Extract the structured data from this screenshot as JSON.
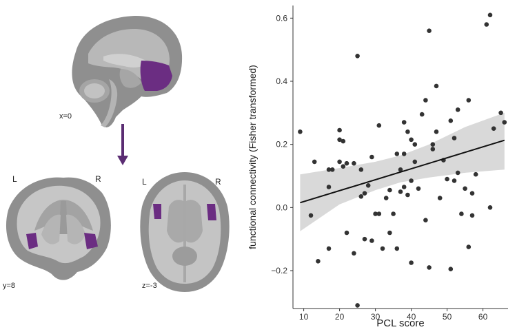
{
  "figure": {
    "slices": {
      "sagittal": "x=0",
      "coronal": "y=8",
      "axial": "z=-3"
    },
    "coronal_sides": {
      "left": "L",
      "right": "R"
    },
    "axial_sides": {
      "left": "L",
      "right": "R"
    },
    "roi_color": "#6b2d82",
    "arrow_color": "#5b2d73"
  },
  "chart_data": {
    "type": "scatter",
    "xlabel": "PCL score",
    "ylabel": "functional connectivity (Fisher transformed)",
    "xlim": [
      7,
      67
    ],
    "ylim": [
      -0.32,
      0.64
    ],
    "xticks": [
      10,
      20,
      30,
      40,
      50,
      60
    ],
    "yticks": [
      -0.2,
      0.0,
      0.2,
      0.4,
      0.6
    ],
    "grid": false,
    "point_color": "#333333",
    "line_color": "#111111",
    "band_color": "#d9d9d9",
    "fit": {
      "intercept": -0.016,
      "slope": 0.00347,
      "x_range": [
        9,
        66
      ]
    },
    "confidence_band": [
      {
        "x": 9,
        "lower": -0.075,
        "upper": 0.105
      },
      {
        "x": 20,
        "lower": 0.01,
        "upper": 0.125
      },
      {
        "x": 30,
        "lower": 0.055,
        "upper": 0.145
      },
      {
        "x": 37,
        "lower": 0.08,
        "upper": 0.165
      },
      {
        "x": 45,
        "lower": 0.095,
        "upper": 0.2
      },
      {
        "x": 55,
        "lower": 0.11,
        "upper": 0.255
      },
      {
        "x": 66,
        "lower": 0.12,
        "upper": 0.3
      }
    ],
    "points": [
      {
        "x": 9,
        "y": 0.24
      },
      {
        "x": 12,
        "y": -0.025
      },
      {
        "x": 13,
        "y": 0.145
      },
      {
        "x": 14,
        "y": -0.17
      },
      {
        "x": 17,
        "y": 0.12
      },
      {
        "x": 17,
        "y": 0.065
      },
      {
        "x": 18,
        "y": 0.12
      },
      {
        "x": 17,
        "y": -0.13
      },
      {
        "x": 20,
        "y": 0.245
      },
      {
        "x": 20,
        "y": 0.145
      },
      {
        "x": 20,
        "y": 0.215
      },
      {
        "x": 21,
        "y": 0.13
      },
      {
        "x": 21,
        "y": 0.21
      },
      {
        "x": 22,
        "y": 0.14
      },
      {
        "x": 22,
        "y": -0.08
      },
      {
        "x": 24,
        "y": 0.14
      },
      {
        "x": 24,
        "y": -0.145
      },
      {
        "x": 25,
        "y": 0.48
      },
      {
        "x": 25,
        "y": -0.31
      },
      {
        "x": 26,
        "y": 0.035
      },
      {
        "x": 26,
        "y": 0.12
      },
      {
        "x": 27,
        "y": 0.045
      },
      {
        "x": 27,
        "y": -0.1
      },
      {
        "x": 28,
        "y": 0.07
      },
      {
        "x": 29,
        "y": 0.16
      },
      {
        "x": 29,
        "y": -0.105
      },
      {
        "x": 30,
        "y": -0.02
      },
      {
        "x": 31,
        "y": 0.26
      },
      {
        "x": 31,
        "y": -0.02
      },
      {
        "x": 32,
        "y": -0.13
      },
      {
        "x": 33,
        "y": 0.03
      },
      {
        "x": 34,
        "y": -0.08
      },
      {
        "x": 34,
        "y": 0.055
      },
      {
        "x": 35,
        "y": -0.02
      },
      {
        "x": 36,
        "y": 0.17
      },
      {
        "x": 36,
        "y": -0.13
      },
      {
        "x": 37,
        "y": 0.05
      },
      {
        "x": 37,
        "y": 0.12
      },
      {
        "x": 38,
        "y": 0.17
      },
      {
        "x": 38,
        "y": 0.27
      },
      {
        "x": 38,
        "y": 0.065
      },
      {
        "x": 39,
        "y": 0.24
      },
      {
        "x": 39,
        "y": 0.04
      },
      {
        "x": 40,
        "y": 0.215
      },
      {
        "x": 40,
        "y": 0.085
      },
      {
        "x": 40,
        "y": -0.175
      },
      {
        "x": 41,
        "y": 0.145
      },
      {
        "x": 41,
        "y": 0.2
      },
      {
        "x": 42,
        "y": 0.06
      },
      {
        "x": 43,
        "y": 0.295
      },
      {
        "x": 44,
        "y": 0.34
      },
      {
        "x": 44,
        "y": -0.04
      },
      {
        "x": 45,
        "y": 0.56
      },
      {
        "x": 45,
        "y": -0.19
      },
      {
        "x": 46,
        "y": 0.185
      },
      {
        "x": 46,
        "y": 0.2
      },
      {
        "x": 47,
        "y": 0.24
      },
      {
        "x": 47,
        "y": 0.385
      },
      {
        "x": 48,
        "y": 0.03
      },
      {
        "x": 49,
        "y": 0.15
      },
      {
        "x": 50,
        "y": 0.09
      },
      {
        "x": 51,
        "y": 0.275
      },
      {
        "x": 51,
        "y": -0.195
      },
      {
        "x": 52,
        "y": 0.085
      },
      {
        "x": 52,
        "y": 0.22
      },
      {
        "x": 53,
        "y": 0.31
      },
      {
        "x": 53,
        "y": 0.11
      },
      {
        "x": 54,
        "y": -0.02
      },
      {
        "x": 55,
        "y": 0.06
      },
      {
        "x": 56,
        "y": 0.34
      },
      {
        "x": 56,
        "y": -0.125
      },
      {
        "x": 57,
        "y": -0.025
      },
      {
        "x": 57,
        "y": 0.045
      },
      {
        "x": 58,
        "y": 0.105
      },
      {
        "x": 61,
        "y": 0.58
      },
      {
        "x": 62,
        "y": 0.61
      },
      {
        "x": 62,
        "y": 0.0
      },
      {
        "x": 63,
        "y": 0.25
      },
      {
        "x": 65,
        "y": 0.3
      },
      {
        "x": 66,
        "y": 0.27
      }
    ]
  }
}
